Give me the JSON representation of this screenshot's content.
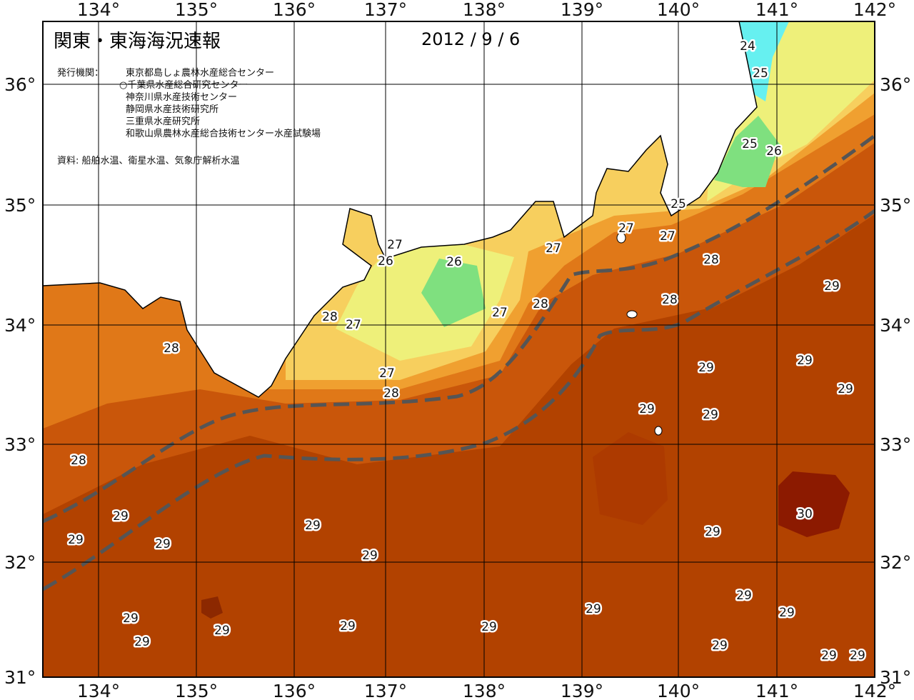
{
  "title": "関東・東海海況速報",
  "date": "2012 / 9 / 6",
  "issuer_label": "発行機関：",
  "issuers": [
    "東京都島しょ農林水産総合センター",
    "○千葉県水産総合研究センター",
    "神奈川県水産技術センター",
    "静岡県水産技術研究所",
    "三重県水産研究所",
    "和歌山県農林水産総合技術センター水産試験場"
  ],
  "source": "資料: 船舶水温、衛星水温、気象庁解析水温",
  "longitude_labels": [
    "134°",
    "135°",
    "136°",
    "137°",
    "138°",
    "139°",
    "140°",
    "141°",
    "142°"
  ],
  "latitude_labels": [
    "36°",
    "35°",
    "34°",
    "33°",
    "32°",
    "31°"
  ],
  "isotherm_labels": [
    "24",
    "25",
    "25",
    "26",
    "25",
    "27",
    "27",
    "27",
    "27",
    "26",
    "26",
    "28",
    "29",
    "28",
    "28",
    "27",
    "28",
    "27",
    "28",
    "29",
    "29",
    "29",
    "27",
    "28",
    "29",
    "29",
    "28",
    "30",
    "29",
    "29",
    "29",
    "29",
    "29",
    "29",
    "29",
    "29",
    "29",
    "29",
    "29",
    "29",
    "29",
    "29",
    "29",
    "29",
    "29"
  ]
}
